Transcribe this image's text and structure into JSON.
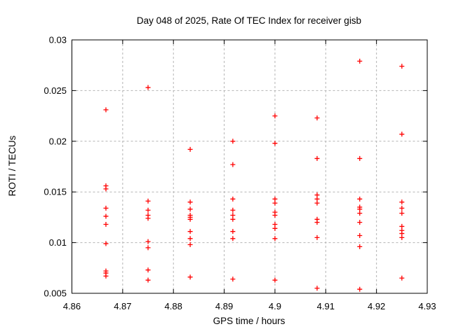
{
  "chart_data": {
    "type": "scatter",
    "title": "Day 048 of 2025, Rate Of TEC Index for receiver gisb",
    "xlabel": "GPS time / hours",
    "ylabel": "ROTI / TECUs",
    "xlim": [
      4.86,
      4.93
    ],
    "ylim": [
      0.005,
      0.03
    ],
    "xticks": [
      4.86,
      4.87,
      4.88,
      4.89,
      4.9,
      4.91,
      4.92,
      4.93
    ],
    "xtick_labels": [
      "4.86",
      "4.87",
      "4.88",
      "4.89",
      "4.9",
      "4.91",
      "4.92",
      "4.93"
    ],
    "yticks": [
      0.005,
      0.01,
      0.015,
      0.02,
      0.025,
      0.03
    ],
    "ytick_labels": [
      "0.005",
      "0.01",
      "0.015",
      "0.02",
      "0.025",
      "0.03"
    ],
    "grid": true,
    "grid_style": "dashed",
    "legend_position": "none",
    "marker": {
      "shape": "plus",
      "color": "#ff0000",
      "size": 7
    },
    "grid_color": "#b4b4b4",
    "axis_color": "#000000",
    "background_color": "#ffffff",
    "series": [
      {
        "name": "ROTI",
        "points": [
          [
            4.8667,
            0.0231
          ],
          [
            4.8667,
            0.0156
          ],
          [
            4.8667,
            0.0153
          ],
          [
            4.8667,
            0.0134
          ],
          [
            4.8667,
            0.0126
          ],
          [
            4.8667,
            0.0118
          ],
          [
            4.8667,
            0.0099
          ],
          [
            4.8667,
            0.0072
          ],
          [
            4.8667,
            0.007
          ],
          [
            4.8667,
            0.0067
          ],
          [
            4.875,
            0.0253
          ],
          [
            4.875,
            0.0141
          ],
          [
            4.875,
            0.0132
          ],
          [
            4.875,
            0.0127
          ],
          [
            4.875,
            0.0124
          ],
          [
            4.875,
            0.0101
          ],
          [
            4.875,
            0.0095
          ],
          [
            4.875,
            0.0073
          ],
          [
            4.875,
            0.0063
          ],
          [
            4.8833,
            0.0192
          ],
          [
            4.8833,
            0.014
          ],
          [
            4.8833,
            0.0133
          ],
          [
            4.8833,
            0.0127
          ],
          [
            4.8833,
            0.0125
          ],
          [
            4.8833,
            0.0123
          ],
          [
            4.8833,
            0.0111
          ],
          [
            4.8833,
            0.0104
          ],
          [
            4.8833,
            0.0098
          ],
          [
            4.8833,
            0.0066
          ],
          [
            4.8917,
            0.02
          ],
          [
            4.8917,
            0.0177
          ],
          [
            4.8917,
            0.0143
          ],
          [
            4.8917,
            0.0132
          ],
          [
            4.8917,
            0.0127
          ],
          [
            4.8917,
            0.0123
          ],
          [
            4.8917,
            0.0111
          ],
          [
            4.8917,
            0.0104
          ],
          [
            4.8917,
            0.0064
          ],
          [
            4.9,
            0.0225
          ],
          [
            4.9,
            0.0198
          ],
          [
            4.9,
            0.0143
          ],
          [
            4.9,
            0.0139
          ],
          [
            4.9,
            0.013
          ],
          [
            4.9,
            0.0127
          ],
          [
            4.9,
            0.0118
          ],
          [
            4.9,
            0.0114
          ],
          [
            4.9,
            0.0104
          ],
          [
            4.9,
            0.0063
          ],
          [
            4.9083,
            0.0223
          ],
          [
            4.9083,
            0.0183
          ],
          [
            4.9083,
            0.0147
          ],
          [
            4.9083,
            0.0143
          ],
          [
            4.9083,
            0.0139
          ],
          [
            4.9083,
            0.0123
          ],
          [
            4.9083,
            0.012
          ],
          [
            4.9083,
            0.0105
          ],
          [
            4.9083,
            0.0055
          ],
          [
            4.9167,
            0.0279
          ],
          [
            4.9167,
            0.0183
          ],
          [
            4.9167,
            0.0143
          ],
          [
            4.9167,
            0.0135
          ],
          [
            4.9167,
            0.0133
          ],
          [
            4.9167,
            0.0129
          ],
          [
            4.9167,
            0.012
          ],
          [
            4.9167,
            0.0107
          ],
          [
            4.9167,
            0.0096
          ],
          [
            4.9167,
            0.0054
          ],
          [
            4.925,
            0.0274
          ],
          [
            4.925,
            0.0207
          ],
          [
            4.925,
            0.014
          ],
          [
            4.925,
            0.0134
          ],
          [
            4.925,
            0.0129
          ],
          [
            4.925,
            0.0116
          ],
          [
            4.925,
            0.0112
          ],
          [
            4.925,
            0.0109
          ],
          [
            4.925,
            0.0105
          ],
          [
            4.925,
            0.0065
          ]
        ]
      }
    ]
  }
}
